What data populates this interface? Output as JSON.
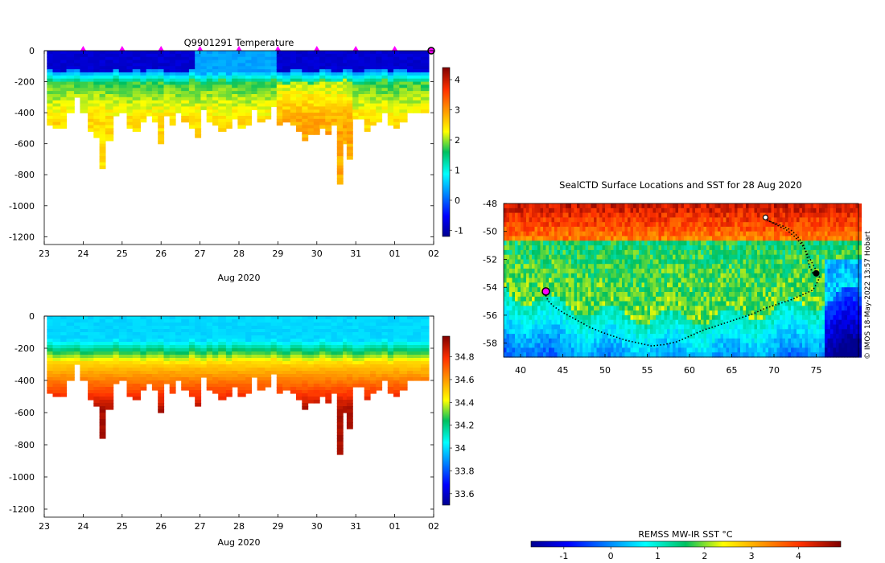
{
  "chart_data": [
    {
      "id": "temperature",
      "type": "heatmap",
      "title": "Q9901291  Temperature",
      "xlabel": "Aug 2020",
      "ylabel": "",
      "x_ticks": [
        "23",
        "24",
        "25",
        "26",
        "27",
        "28",
        "29",
        "30",
        "31",
        "01",
        "02"
      ],
      "y_ticks": [
        "0",
        "-200",
        "-400",
        "-600",
        "-800",
        "-1000",
        "-1200"
      ],
      "xlim": [
        23,
        33
      ],
      "ylim": [
        -1250,
        0
      ],
      "colorbar": {
        "min": -1.2,
        "max": 4.4,
        "ticks": [
          "-1",
          "0",
          "1",
          "2",
          "3",
          "4"
        ],
        "tick_values": [
          -1,
          0,
          1,
          2,
          3,
          4
        ]
      },
      "profile_times": [
        23.15,
        23.3,
        23.5,
        23.65,
        23.85,
        24.0,
        24.2,
        24.35,
        24.5,
        24.65,
        24.85,
        25.0,
        25.2,
        25.35,
        25.55,
        25.7,
        25.85,
        26.0,
        26.15,
        26.3,
        26.45,
        26.6,
        26.8,
        26.95,
        27.1,
        27.25,
        27.4,
        27.55,
        27.75,
        27.9,
        28.05,
        28.25,
        28.4,
        28.55,
        28.75,
        28.9,
        29.05,
        29.2,
        29.4,
        29.55,
        29.7,
        29.85,
        30.0,
        30.15,
        30.3,
        30.45,
        30.6,
        30.75,
        30.85,
        31.0,
        31.15,
        31.3,
        31.45,
        31.6,
        31.75,
        31.9,
        32.05,
        32.2,
        32.4,
        32.55,
        32.75
      ],
      "profile_max_depth": [
        470,
        500,
        490,
        400,
        300,
        400,
        520,
        560,
        760,
        580,
        420,
        400,
        500,
        520,
        460,
        410,
        450,
        600,
        420,
        480,
        400,
        460,
        500,
        560,
        370,
        460,
        470,
        510,
        490,
        440,
        500,
        480,
        370,
        450,
        440,
        360,
        480,
        460,
        480,
        520,
        570,
        540,
        540,
        500,
        540,
        470,
        860,
        600,
        700,
        440,
        440,
        510,
        470,
        460,
        400,
        480,
        500,
        460,
        400,
        400,
        400
      ],
      "markers_x": [
        24,
        25,
        26,
        27,
        28,
        29,
        30,
        31,
        32
      ],
      "marker_color": "#ff00ff"
    },
    {
      "id": "salinity",
      "type": "heatmap",
      "title": "",
      "xlabel": "Aug 2020",
      "ylabel": "",
      "x_ticks": [
        "23",
        "24",
        "25",
        "26",
        "27",
        "28",
        "29",
        "30",
        "31",
        "01",
        "02"
      ],
      "y_ticks": [
        "0",
        "-200",
        "-400",
        "-600",
        "-800",
        "-1000",
        "-1200"
      ],
      "xlim": [
        23,
        33
      ],
      "ylim": [
        -1250,
        0
      ],
      "colorbar": {
        "min": 33.5,
        "max": 34.98,
        "ticks": [
          "33.6",
          "33.8",
          "34",
          "34.2",
          "34.4",
          "34.6",
          "34.8"
        ],
        "tick_values": [
          33.6,
          33.8,
          34.0,
          34.2,
          34.4,
          34.6,
          34.8
        ]
      }
    },
    {
      "id": "sst_map",
      "type": "heatmap",
      "title": "SealCTD Surface Locations and SST for 28 Aug 2020",
      "xlabel": "",
      "ylabel": "",
      "x_ticks": [
        "40",
        "45",
        "50",
        "55",
        "60",
        "65",
        "70",
        "75"
      ],
      "y_ticks": [
        "-48",
        "-50",
        "-52",
        "-54",
        "-56",
        "-58"
      ],
      "xlim": [
        38,
        80
      ],
      "ylim": [
        -59,
        -48
      ],
      "colorbar": {
        "label": "REMSS MW-IR SST °C",
        "min": -1.7,
        "max": 4.9,
        "ticks": [
          "-1",
          "0",
          "1",
          "2",
          "3",
          "4"
        ],
        "tick_values": [
          -1,
          0,
          1,
          2,
          3,
          4
        ]
      },
      "track": [
        [
          74.6,
          -53.0
        ],
        [
          74.2,
          -52.5
        ],
        [
          73.9,
          -51.8
        ],
        [
          73.6,
          -51.1
        ],
        [
          73.2,
          -50.7
        ],
        [
          72.7,
          -50.3
        ],
        [
          72.0,
          -49.9
        ],
        [
          71.0,
          -49.6
        ],
        [
          70.0,
          -49.4
        ],
        [
          69.2,
          -49.2
        ],
        [
          70.2,
          -49.5
        ],
        [
          71.5,
          -49.9
        ],
        [
          72.5,
          -50.4
        ],
        [
          73.5,
          -51.1
        ],
        [
          74.3,
          -52.0
        ],
        [
          75.0,
          -52.8
        ],
        [
          75.4,
          -53.3
        ],
        [
          75.0,
          -53.8
        ],
        [
          74.6,
          -54.2
        ],
        [
          73.5,
          -54.5
        ],
        [
          72.0,
          -54.9
        ],
        [
          70.5,
          -55.2
        ],
        [
          69.0,
          -55.5
        ],
        [
          67.5,
          -55.9
        ],
        [
          66.0,
          -56.2
        ],
        [
          64.5,
          -56.5
        ],
        [
          63.0,
          -56.8
        ],
        [
          61.5,
          -57.1
        ],
        [
          60.0,
          -57.5
        ],
        [
          58.5,
          -57.9
        ],
        [
          57.0,
          -58.1
        ],
        [
          55.5,
          -58.2
        ],
        [
          54.0,
          -58.0
        ],
        [
          52.5,
          -57.8
        ],
        [
          51.0,
          -57.5
        ],
        [
          49.5,
          -57.2
        ],
        [
          48.0,
          -56.8
        ],
        [
          46.5,
          -56.3
        ],
        [
          45.0,
          -55.8
        ],
        [
          44.0,
          -55.4
        ],
        [
          43.3,
          -55.0
        ],
        [
          43.0,
          -54.6
        ],
        [
          43.0,
          -54.3
        ]
      ],
      "start_point": [
        69.0,
        -49.0
      ],
      "end_point": [
        43.0,
        -54.3
      ]
    }
  ],
  "credit": "© IMOS 18-May-2022 13:57 Hobart",
  "colors": {
    "marker": "#ff00ff",
    "track": "#000000",
    "axis": "#000000"
  }
}
